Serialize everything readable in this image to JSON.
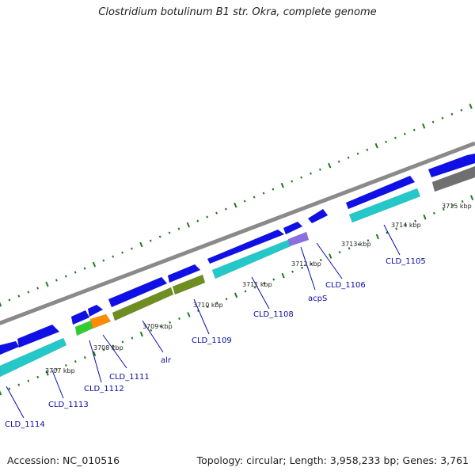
{
  "title": "Clostridium botulinum B1 str. Okra, complete genome",
  "footer": {
    "accession": "Accession: NC_010516",
    "summary": "Topology: circular; Length: 3,958,233 bp; Genes: 3,761"
  },
  "colors": {
    "backbone": "#8a8a8a",
    "gene_arrow": "#1010e6",
    "ticks": "#1e7b1e",
    "cyan_feature": "#25c8c8",
    "olive_feature": "#6e8e22",
    "green_feature": "#33cc33",
    "orange_feature": "#ff8c00",
    "purple_feature": "#8a6fe0",
    "gray_feature": "#707070",
    "label": "#0a0aa8"
  },
  "scale_labels": [
    "3707 kbp",
    "3708 kbp",
    "3709 kbp",
    "3710 kbp",
    "3711 kbp",
    "3712 kbp",
    "3713 kbp",
    "3714 kbp",
    "3715 kbp"
  ],
  "gene_labels": [
    "CLD_1114",
    "CLD_1113",
    "CLD_1112",
    "CLD_1111",
    "alr",
    "CLD_1109",
    "CLD_1108",
    "acpS",
    "CLD_1106",
    "CLD_1105"
  ]
}
